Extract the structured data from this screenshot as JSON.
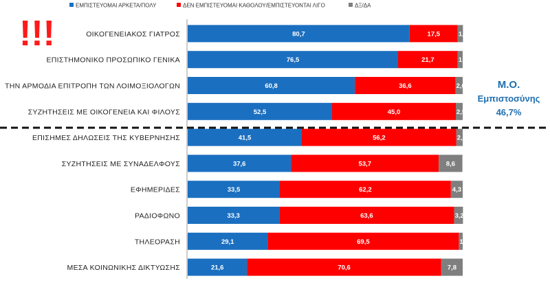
{
  "chart_data": {
    "type": "bar",
    "orientation": "horizontal",
    "stacked": "percent",
    "categories": [
      "ΟΙΚΟΓΕΝΕΙΑΚΟΣ ΓΙΑΤΡΟΣ",
      "ΕΠΙΣΤΗΜΟΝΙΚΟ ΠΡΟΣΩΠΙΚΟ ΓΕΝΙΚΑ",
      "ΤΗΝ ΑΡΜΟΔΙΑ ΕΠΙΤΡΟΠΗ ΤΩΝ ΛΟΙΜΟΞΙΟΛΟΓΩΝ",
      "ΣΥΖΗΤΗΣΕΙΣ ΜΕ ΟΙΚΟΓΕΝΕΙΑ ΚΑΙ ΦΙΛΟΥΣ",
      "ΕΠΙΣΗΜΕΣ ΔΗΛΩΣΕΙΣ ΤΗΣ ΚΥΒΕΡΝΗΣΗΣ",
      "ΣΥΖΗΤΗΣΕΙΣ ΜΕ ΣΥΝΑΔΕΛΦΟΥΣ",
      "ΕΦΗΜΕΡΙΔΕΣ",
      "ΡΑΔΙΟΦΩΝΟ",
      "ΤΗΛΕΟΡΑΣΗ",
      "ΜΕΣΑ ΚΟΙΝΩΝΙΚΗΣ ΔΙΚΤΥΩΣΗΣ"
    ],
    "series": [
      {
        "name": "ΕΜΠΙΣΤΕΥΟΜΑΙ ΑΡΚΕΤΑ/ΠΟΛΥ",
        "color": "#1b6fc0",
        "values": [
          80.7,
          76.5,
          60.8,
          52.5,
          41.5,
          37.6,
          33.5,
          33.3,
          29.1,
          21.6
        ],
        "labels": [
          "80,7",
          "76,5",
          "60,8",
          "52,5",
          "41,5",
          "37,6",
          "33,5",
          "33,3",
          "29,1",
          "21,6"
        ]
      },
      {
        "name": "ΔΕΝ ΕΜΠΙΣΤΕΥΟΜΑΙ ΚΑΘΟΛΟΥ/ΕΜΠΙΣΤΕΥΟΝΤΑΙ ΛΙΓΟ",
        "color": "#ff0000",
        "values": [
          17.5,
          21.7,
          36.6,
          45.0,
          56.2,
          53.7,
          62.2,
          63.6,
          69.5,
          70.6
        ],
        "labels": [
          "17,5",
          "21,7",
          "36,6",
          "45,0",
          "56,2",
          "53,7",
          "62,2",
          "63,6",
          "69,5",
          "70,6"
        ]
      },
      {
        "name": "ΔΞ/ΔΑ",
        "color": "#7f7f7f",
        "values": [
          1.9,
          1.8,
          2.6,
          2.5,
          2.3,
          8.6,
          4.3,
          3.2,
          1.4,
          7.8
        ],
        "labels": [
          "1,9",
          "1,8",
          "2,6",
          "2,5",
          "2,3",
          "8,6",
          "4,3",
          "3,2",
          "1,4",
          "7,8"
        ]
      }
    ],
    "legend_position": "top",
    "annotation": {
      "title": "Μ.Ο.",
      "subtitle": "Εμπιστοσύνης",
      "value": "46,7%"
    },
    "exclamation": "!!!",
    "separator_after_index": 3
  }
}
